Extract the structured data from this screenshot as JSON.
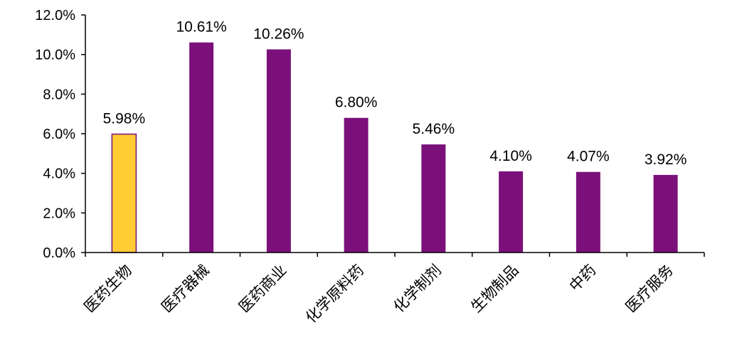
{
  "chart_data": {
    "type": "bar",
    "title": "",
    "xlabel": "",
    "ylabel": "",
    "categories": [
      "医药生物",
      "医疗器械",
      "医药商业",
      "化学原料药",
      "化学制剂",
      "生物制品",
      "中药",
      "医疗服务"
    ],
    "values": [
      5.98,
      10.61,
      10.26,
      6.8,
      5.46,
      4.1,
      4.07,
      3.92
    ],
    "data_labels": [
      "5.98%",
      "10.61%",
      "10.26%",
      "6.80%",
      "5.46%",
      "4.10%",
      "4.07%",
      "3.92%"
    ],
    "ylim": [
      0,
      12
    ],
    "yticks": [
      0,
      2,
      4,
      6,
      8,
      10,
      12
    ],
    "ytick_labels": [
      "0.0%",
      "2.0%",
      "4.0%",
      "6.0%",
      "8.0%",
      "10.0%",
      "12.0%"
    ],
    "grid": false,
    "legend": "none",
    "colors": {
      "highlight_fill": "#FFCC33",
      "highlight_stroke": "#7B107B",
      "bar_fill": "#7B107B",
      "axis": "#000000"
    },
    "highlight_index": 0
  }
}
